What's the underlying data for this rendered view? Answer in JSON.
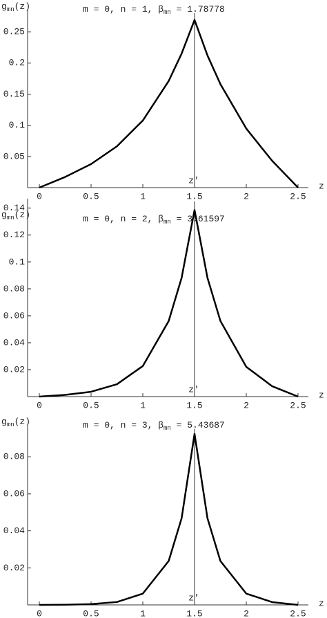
{
  "chart_data": [
    {
      "type": "line",
      "title": {
        "base": "m = 0, n = 1, β",
        "sub": "mn",
        "rest": " = 1.78778"
      },
      "ylabel": {
        "base": "g",
        "sub": "mn",
        "rest": "(z)"
      },
      "xlabel": "z",
      "annotation": {
        "text": "z′",
        "x": 1.5
      },
      "x": [
        0,
        0.25,
        0.5,
        0.75,
        1.0,
        1.25,
        1.375,
        1.5,
        1.625,
        1.75,
        2.0,
        2.25,
        2.5
      ],
      "values": [
        0,
        0.0171,
        0.0378,
        0.0663,
        0.1076,
        0.171,
        0.215,
        0.269,
        0.212,
        0.166,
        0.0947,
        0.043,
        0
      ],
      "color": "#000000",
      "xlim": [
        0,
        2.5
      ],
      "xticks": [
        0,
        0.5,
        1,
        1.5,
        2,
        2.5
      ],
      "ylim": [
        0,
        0.28
      ],
      "yticks": [
        0.05,
        0.1,
        0.15,
        0.2,
        0.25
      ]
    },
    {
      "type": "line",
      "title": {
        "base": "m = 0, n = 2, β",
        "sub": "mn",
        "rest": " = 3.61597"
      },
      "ylabel": {
        "base": "g",
        "sub": "mn",
        "rest": "(z)"
      },
      "xlabel": "z",
      "annotation": {
        "text": "z′",
        "x": 1.5
      },
      "x": [
        0,
        0.25,
        0.5,
        0.75,
        1.0,
        1.25,
        1.375,
        1.5,
        1.625,
        1.75,
        2.0,
        2.25,
        2.5
      ],
      "values": [
        0,
        0.00126,
        0.0036,
        0.0092,
        0.0227,
        0.0561,
        0.0882,
        0.1386,
        0.0882,
        0.0562,
        0.0221,
        0.0077,
        0
      ],
      "color": "#000000",
      "xlim": [
        0,
        2.5
      ],
      "xticks": [
        0,
        0.5,
        1,
        1.5,
        2,
        2.5
      ],
      "ylim": [
        0,
        0.145
      ],
      "yticks": [
        0.02,
        0.04,
        0.06,
        0.08,
        0.1,
        0.12,
        0.14
      ]
    },
    {
      "type": "line",
      "title": {
        "base": "m = 0, n = 3, β",
        "sub": "mn",
        "rest": " = 5.43687"
      },
      "ylabel": {
        "base": "g",
        "sub": "mn",
        "rest": "(z)"
      },
      "xlabel": "z",
      "annotation": {
        "text": "z′",
        "x": 1.5
      },
      "x": [
        0,
        0.25,
        0.5,
        0.75,
        1.0,
        1.25,
        1.375,
        1.5,
        1.625,
        1.75,
        2.0,
        2.25,
        2.5
      ],
      "values": [
        0,
        0.0001,
        0.0004,
        0.00156,
        0.0061,
        0.0237,
        0.0468,
        0.0924,
        0.0468,
        0.0237,
        0.0061,
        0.0015,
        0
      ],
      "color": "#000000",
      "xlim": [
        0,
        2.5
      ],
      "xticks": [
        0,
        0.5,
        1,
        1.5,
        2,
        2.5
      ],
      "ylim": [
        0,
        0.095
      ],
      "yticks": [
        0.02,
        0.04,
        0.06,
        0.08
      ]
    }
  ]
}
